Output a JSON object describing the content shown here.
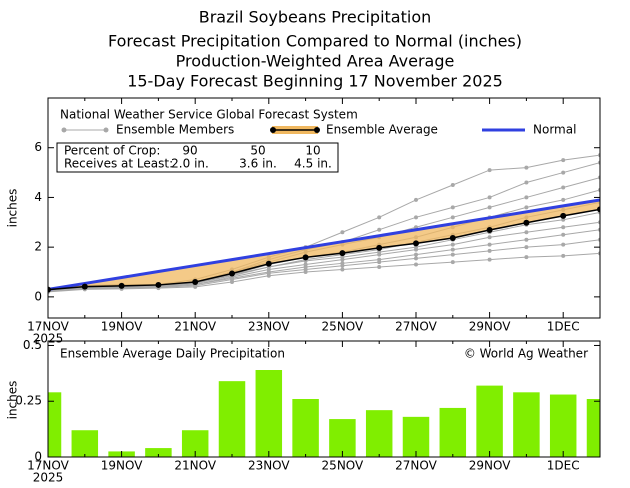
{
  "chart_data": [
    {
      "type": "line",
      "title": "Brazil Soybeans Precipitation",
      "subtitles": [
        "Forecast Precipitation Compared to Normal (inches)",
        "Production-Weighted Area Average",
        "15-Day Forecast Beginning 17 November 2025"
      ],
      "ylabel": "inches",
      "x": [
        "17NOV",
        null,
        "19NOV",
        null,
        "21NOV",
        null,
        "23NOV",
        null,
        "25NOV",
        null,
        "27NOV",
        null,
        "29NOV",
        null,
        "1DEC",
        null
      ],
      "x_year": "2025",
      "ylim": [
        -0.85,
        8
      ],
      "yticks": [
        0,
        2,
        4,
        6
      ],
      "legend_title": "National Weather Service Global Forecast System",
      "ensemble_members": {
        "name": "Ensemble Members",
        "color": "#a8a8a8",
        "members": [
          [
            0.3,
            0.45,
            0.5,
            0.5,
            0.7,
            1.1,
            1.6,
            2.0,
            2.6,
            3.2,
            3.9,
            4.5,
            5.1,
            5.2,
            5.5,
            5.7
          ],
          [
            0.3,
            0.4,
            0.45,
            0.5,
            0.6,
            1.0,
            1.5,
            1.9,
            2.2,
            2.7,
            3.2,
            3.6,
            4.0,
            4.6,
            5.0,
            5.4
          ],
          [
            0.25,
            0.4,
            0.4,
            0.45,
            0.6,
            1.0,
            1.4,
            1.8,
            2.1,
            2.4,
            2.8,
            3.2,
            3.6,
            4.0,
            4.4,
            4.8
          ],
          [
            0.3,
            0.4,
            0.42,
            0.45,
            0.55,
            0.9,
            1.3,
            1.6,
            1.8,
            2.1,
            2.4,
            2.8,
            3.2,
            3.6,
            3.9,
            4.3
          ],
          [
            0.25,
            0.38,
            0.4,
            0.42,
            0.55,
            0.9,
            1.2,
            1.5,
            1.7,
            1.9,
            2.2,
            2.5,
            2.8,
            3.2,
            3.5,
            3.8
          ],
          [
            0.28,
            0.4,
            0.4,
            0.43,
            0.55,
            0.85,
            1.2,
            1.45,
            1.6,
            1.8,
            2.0,
            2.3,
            2.6,
            2.9,
            3.1,
            3.4
          ],
          [
            0.25,
            0.35,
            0.38,
            0.4,
            0.5,
            0.8,
            1.1,
            1.3,
            1.5,
            1.7,
            1.9,
            2.1,
            2.4,
            2.6,
            2.8,
            3.0
          ],
          [
            0.25,
            0.35,
            0.38,
            0.4,
            0.5,
            0.75,
            1.0,
            1.2,
            1.35,
            1.5,
            1.7,
            1.9,
            2.1,
            2.3,
            2.5,
            2.7
          ],
          [
            0.22,
            0.32,
            0.35,
            0.38,
            0.45,
            0.7,
            0.95,
            1.1,
            1.25,
            1.4,
            1.55,
            1.7,
            1.85,
            2.0,
            2.1,
            2.3
          ],
          [
            0.2,
            0.3,
            0.32,
            0.35,
            0.4,
            0.6,
            0.85,
            1.0,
            1.1,
            1.2,
            1.3,
            1.4,
            1.5,
            1.6,
            1.65,
            1.75
          ]
        ]
      },
      "series": [
        {
          "name": "Ensemble Average",
          "color": "#000000",
          "band_color": "#f0b860",
          "values": [
            0.29,
            0.41,
            0.44,
            0.48,
            0.6,
            0.94,
            1.33,
            1.59,
            1.76,
            1.97,
            2.15,
            2.37,
            2.69,
            2.98,
            3.26,
            3.52
          ]
        },
        {
          "name": "Normal",
          "color": "#3040e0",
          "values": [
            0.3,
            0.54,
            0.78,
            1.02,
            1.26,
            1.5,
            1.74,
            1.98,
            2.22,
            2.46,
            2.7,
            2.94,
            3.18,
            3.42,
            3.66,
            3.9
          ]
        }
      ],
      "crop_table": {
        "header": "Percent of Crop:",
        "row_label": "Receives at Least:",
        "percents": [
          90,
          50,
          10
        ],
        "amounts": [
          "2.0 in.",
          "3.6 in.",
          "4.5 in."
        ]
      }
    },
    {
      "type": "bar",
      "title": "Ensemble Average Daily Precipitation",
      "credit": "© World Ag Weather",
      "ylabel": "inches",
      "x": [
        "17NOV",
        null,
        "19NOV",
        null,
        "21NOV",
        null,
        "23NOV",
        null,
        "25NOV",
        null,
        "27NOV",
        null,
        "29NOV",
        null,
        "1DEC",
        null
      ],
      "x_year": "2025",
      "ylim": [
        0,
        0.52
      ],
      "yticks": [
        0,
        0.25,
        0.5
      ],
      "color": "#80ee00",
      "values": [
        0.29,
        0.12,
        0.025,
        0.04,
        0.12,
        0.34,
        0.39,
        0.26,
        0.17,
        0.21,
        0.18,
        0.22,
        0.32,
        0.29,
        0.28,
        0.26
      ]
    }
  ]
}
